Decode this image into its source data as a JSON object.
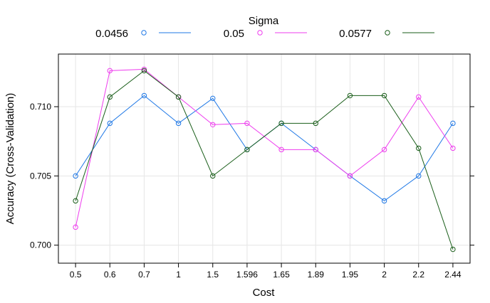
{
  "chart_data": {
    "type": "line",
    "xlabel": "Cost",
    "ylabel": "Accuracy (Cross-Validation)",
    "legend_title": "Sigma",
    "legend_position": "top",
    "grid": true,
    "categories": [
      "0.5",
      "0.6",
      "0.7",
      "1",
      "1.5",
      "1.596",
      "1.65",
      "1.89",
      "1.95",
      "2",
      "2.2",
      "2.44"
    ],
    "ylim": [
      0.6987,
      0.7138
    ],
    "yticks": [
      0.7,
      0.705,
      0.71
    ],
    "ytick_labels": [
      "0.700",
      "0.705",
      "0.710"
    ],
    "series": [
      {
        "name": "0.0456",
        "color": "#1f78e6",
        "values": [
          0.705,
          0.7088,
          0.7108,
          0.7088,
          0.7106,
          0.7069,
          0.7088,
          0.7069,
          0.705,
          0.7032,
          0.705,
          0.7088
        ]
      },
      {
        "name": "0.05",
        "color": "#ee3cee",
        "values": [
          0.7013,
          0.7126,
          0.7127,
          0.7107,
          0.7087,
          0.7088,
          0.7069,
          0.7069,
          0.705,
          0.7069,
          0.7107,
          0.707
        ]
      },
      {
        "name": "0.0577",
        "color": "#1a5e1a",
        "values": [
          0.7032,
          0.7107,
          0.7126,
          0.7107,
          0.705,
          0.7069,
          0.7088,
          0.7088,
          0.7108,
          0.7108,
          0.707,
          0.6997
        ]
      }
    ]
  }
}
